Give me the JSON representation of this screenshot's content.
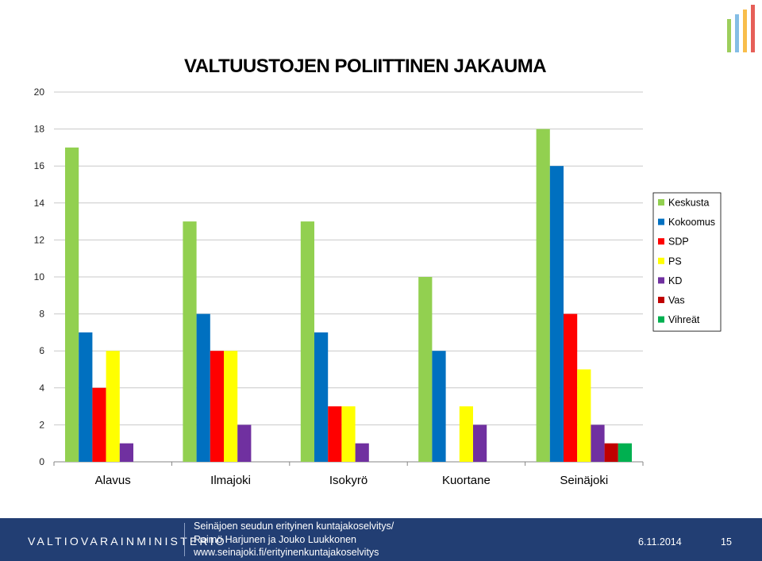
{
  "slide": {
    "title": "VALTUUSTOJEN POLIITTINEN JAKAUMA"
  },
  "chart_data": {
    "type": "bar",
    "categories": [
      "Alavus",
      "Ilmajoki",
      "Isokyrö",
      "Kuortane",
      "Seinäjoki"
    ],
    "series": [
      {
        "name": "Keskusta",
        "color": "#92d050",
        "values": [
          17,
          13,
          13,
          10,
          18
        ]
      },
      {
        "name": "Kokoomus",
        "color": "#0070c0",
        "values": [
          7,
          8,
          7,
          6,
          16
        ]
      },
      {
        "name": "SDP",
        "color": "#ff0000",
        "values": [
          4,
          6,
          3,
          0,
          8
        ]
      },
      {
        "name": "PS",
        "color": "#ffff00",
        "values": [
          6,
          6,
          3,
          3,
          5
        ]
      },
      {
        "name": "KD",
        "color": "#7030a0",
        "values": [
          1,
          2,
          1,
          2,
          2
        ]
      },
      {
        "name": "Vas",
        "color": "#c00000",
        "values": [
          0,
          0,
          0,
          0,
          1
        ]
      },
      {
        "name": "Vihreät",
        "color": "#00b050",
        "values": [
          0,
          0,
          0,
          0,
          1
        ]
      }
    ],
    "yticks": [
      0,
      2,
      4,
      6,
      8,
      10,
      12,
      14,
      16,
      18,
      20
    ],
    "ylim": [
      0,
      20
    ],
    "grid": true,
    "legend": "right"
  },
  "footer": {
    "ministry": "VALTIOVARAINMINISTERIÖ",
    "lines": [
      "Seinäjoen seudun erityinen kuntajakoselvitys/",
      "Raimo Harjunen ja Jouko Luukkonen",
      "www.seinajoki.fi/erityinenkuntajakoselvitys"
    ],
    "date": "6.11.2014",
    "page": "15"
  }
}
